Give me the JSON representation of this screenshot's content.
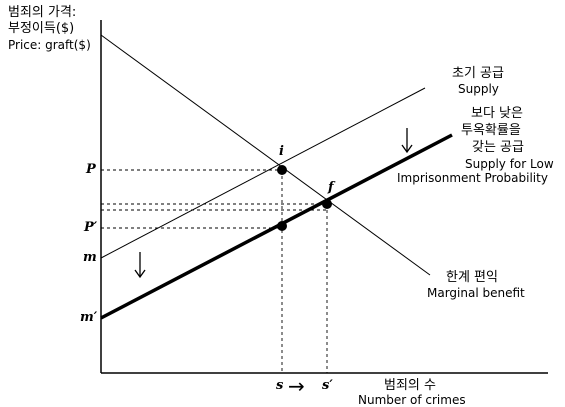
{
  "y_axis": {
    "label_ko_line1": "범죄의 가격:",
    "label_ko_line2": "부정이득($)",
    "label_en": "Price: graft($)"
  },
  "x_axis": {
    "label_ko": "범죄의 수",
    "label_en": "Number of crimes",
    "tick_s": "s",
    "tick_s_prime": "s′",
    "shift_arrow": "→"
  },
  "price_ticks": {
    "p": "P",
    "p_prime": "P′",
    "m": "m",
    "m_prime": "m′"
  },
  "curves": {
    "initial_supply_ko": "초기 공급",
    "initial_supply_en": "Supply",
    "low_supply_ko_line1": "보다 낮은",
    "low_supply_ko_line2": "투옥확률을",
    "low_supply_ko_line3": "갖는 공급",
    "low_supply_en_line1": "Supply for Low",
    "low_supply_en_line2": "Imprisonment Probability",
    "mb_ko": "한계 편익",
    "mb_en": "Marginal benefit"
  },
  "points": {
    "i": "i",
    "f": "f"
  }
}
